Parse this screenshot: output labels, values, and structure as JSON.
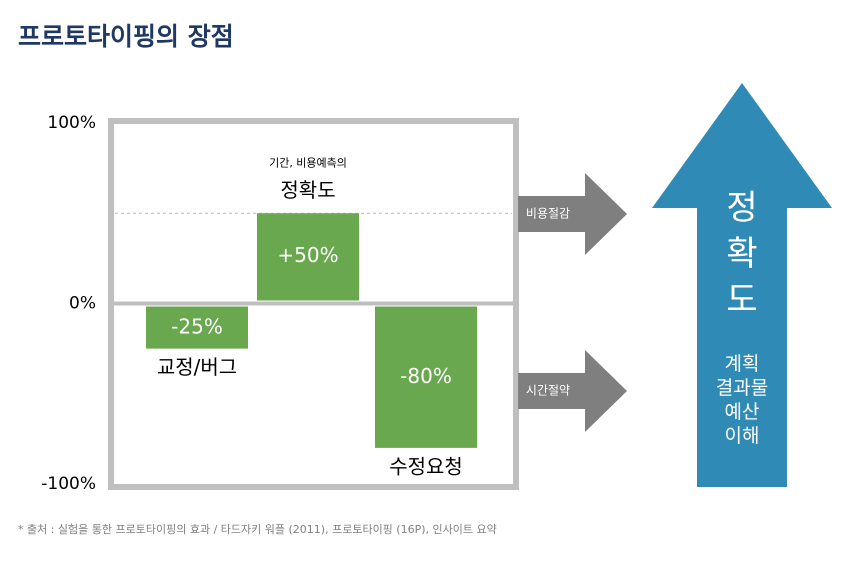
{
  "header": {
    "title": "프로토타이핑의 장점"
  },
  "chart_data": {
    "type": "bar",
    "categories": [
      "교정/버그",
      "정확도",
      "수정요청"
    ],
    "values": [
      -25,
      50,
      -80
    ],
    "value_labels": [
      "-25%",
      "+50%",
      "-80%"
    ],
    "color": "#6aa84f",
    "ylim": [
      -100,
      100
    ],
    "yticks": [
      {
        "value": 100,
        "label": "100%"
      },
      {
        "value": 0,
        "label": "0%"
      },
      {
        "value": -100,
        "label": "-100%"
      }
    ],
    "annotations": [
      "기간, 비용예측의"
    ]
  },
  "arrows": [
    {
      "label": "비용절감"
    },
    {
      "label": "시간절약"
    }
  ],
  "result": {
    "title": "정확도",
    "lines": [
      "계획",
      "결과물",
      "예산",
      "이해"
    ]
  },
  "footnote": "* 출처 : 실험을 통한 프로토타이핑의 효과 / 타드자키 워플 (2011), 프로토타이핑 (16P), 인사이트 요약"
}
